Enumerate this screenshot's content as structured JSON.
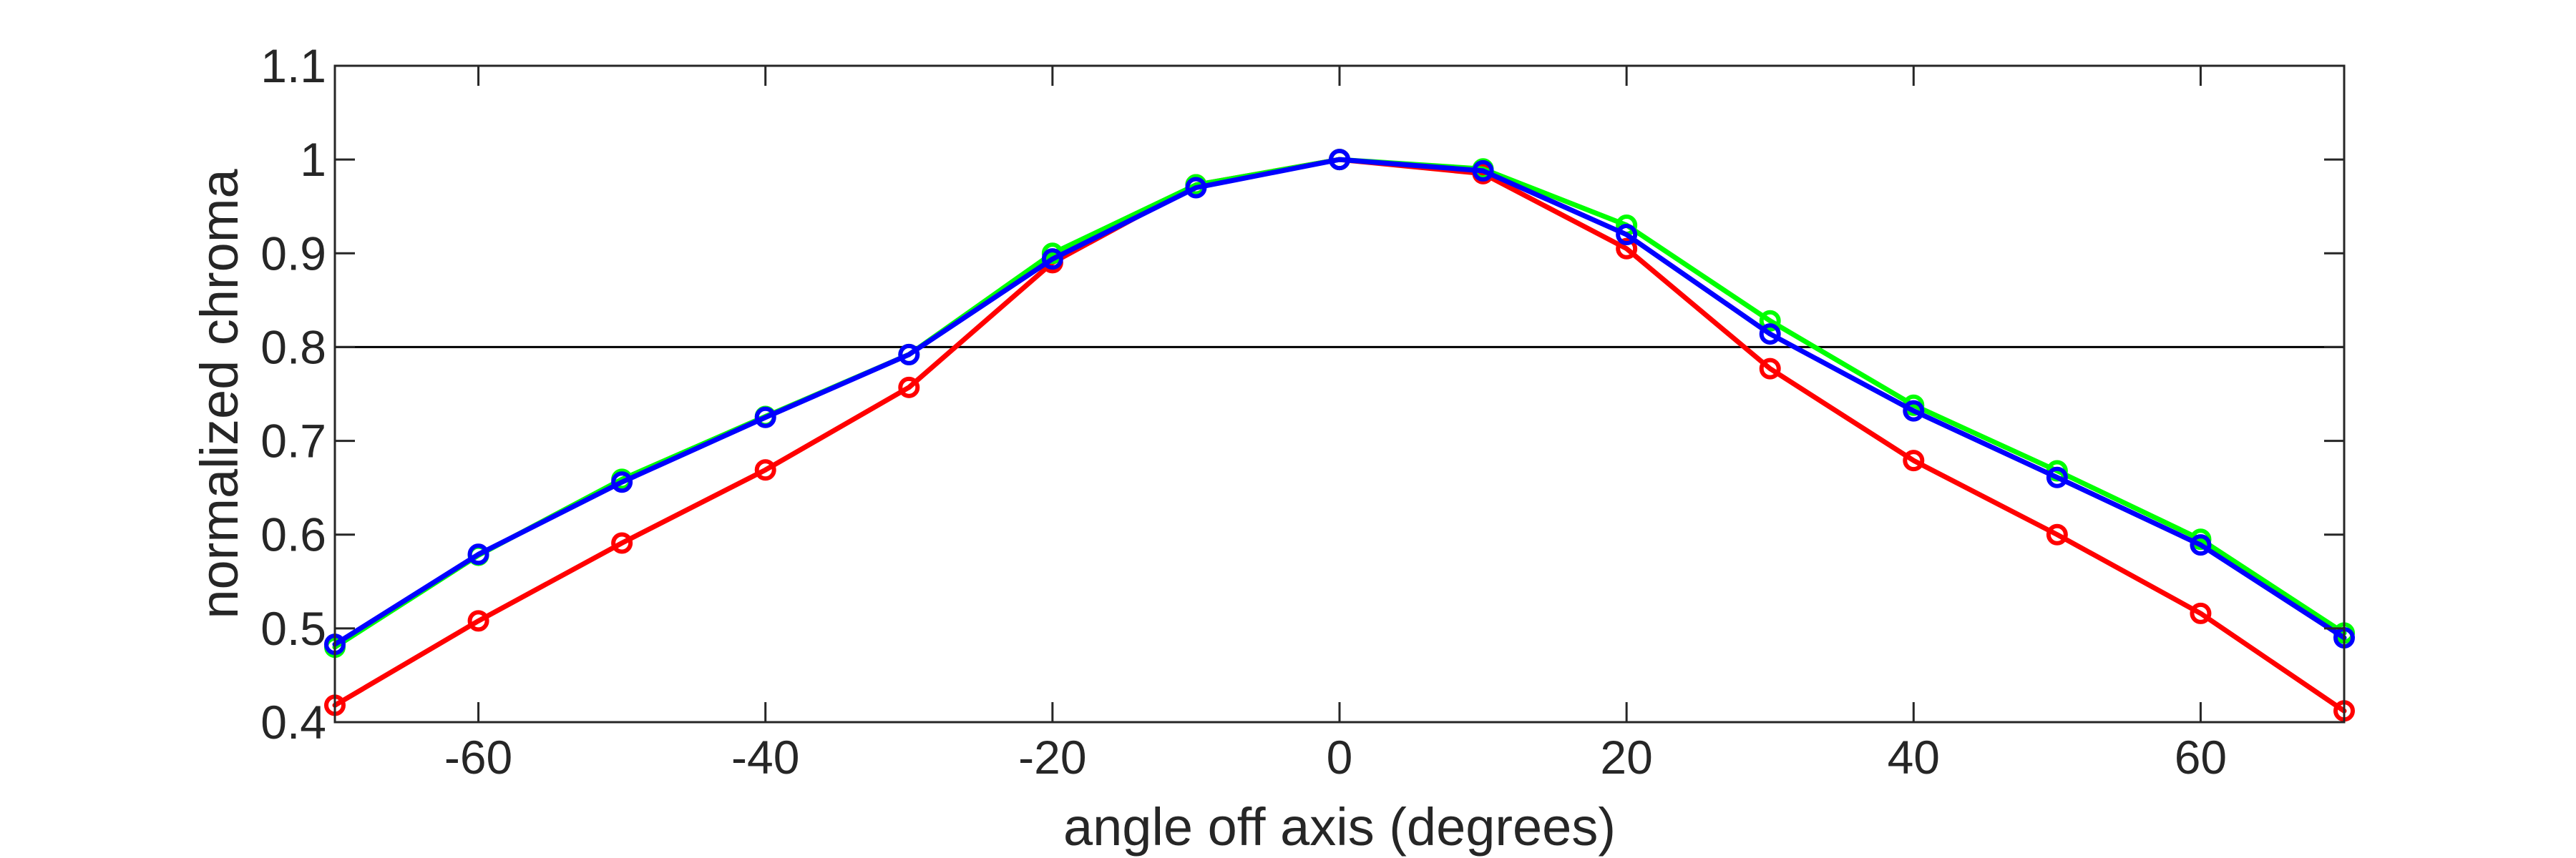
{
  "chart_data": {
    "type": "line",
    "title": "",
    "xlabel": "angle off axis (degrees)",
    "ylabel": "normalized chroma",
    "xlim": [
      -70,
      70
    ],
    "ylim": [
      0.4,
      1.1
    ],
    "xticks": [
      -60,
      -40,
      -20,
      0,
      20,
      40,
      60
    ],
    "xtick_labels": [
      "-60",
      "-40",
      "-20",
      "0",
      "20",
      "40",
      "60"
    ],
    "yticks": [
      0.4,
      0.5,
      0.6,
      0.7,
      0.8,
      0.9,
      1.0,
      1.1
    ],
    "ytick_labels": [
      "0.4",
      "0.5",
      "0.6",
      "0.7",
      "0.8",
      "0.9",
      "1",
      "1.1"
    ],
    "grid": false,
    "legend": "none",
    "reference_line": {
      "y": 0.8,
      "color": "#000000"
    },
    "x": [
      -70,
      -60,
      -50,
      -40,
      -30,
      -20,
      -10,
      0,
      10,
      20,
      30,
      40,
      50,
      60,
      70
    ],
    "series": [
      {
        "color": "#ff0000",
        "values": [
          0.418,
          0.508,
          0.591,
          0.669,
          0.757,
          0.89,
          0.973,
          1.0,
          0.985,
          0.905,
          0.777,
          0.679,
          0.6,
          0.516,
          0.412
        ]
      },
      {
        "color": "#00ff00",
        "values": [
          0.48,
          0.578,
          0.659,
          0.726,
          0.792,
          0.9,
          0.973,
          1.0,
          0.99,
          0.93,
          0.828,
          0.738,
          0.668,
          0.595,
          0.495
        ]
      },
      {
        "color": "#0000ff",
        "values": [
          0.483,
          0.579,
          0.656,
          0.725,
          0.792,
          0.894,
          0.97,
          1.0,
          0.988,
          0.92,
          0.814,
          0.732,
          0.661,
          0.589,
          0.49
        ]
      }
    ]
  }
}
